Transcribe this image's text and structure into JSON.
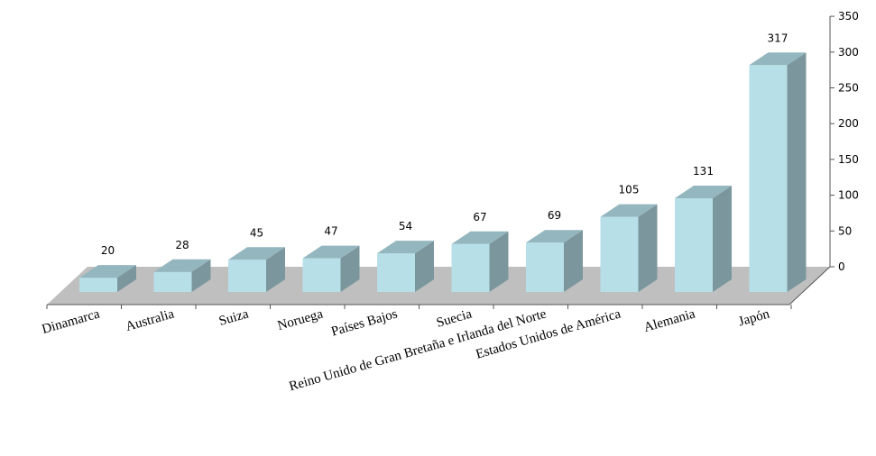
{
  "chart_data": {
    "type": "bar",
    "categories": [
      "Dinamarca",
      "Australia",
      "Suiza",
      "Noruega",
      "Países Bajos",
      "Suecia",
      "Reino Unido de Gran Bretaña e Irlanda del Norte",
      "Estados Unidos de América",
      "Alemania",
      "Japón"
    ],
    "values": [
      20,
      28,
      45,
      47,
      54,
      67,
      69,
      105,
      131,
      317
    ],
    "y_ticks": [
      0,
      50,
      100,
      150,
      200,
      250,
      300,
      350
    ],
    "ylim": [
      0,
      350
    ],
    "title": "",
    "xlabel": "",
    "ylabel": "",
    "grid": false,
    "legend": "none",
    "style": "3d",
    "colors": {
      "bar_front": "#b7dfe8",
      "bar_top": "#94b6be",
      "bar_side": "#7b979d",
      "floor": "#bfbfbf"
    }
  }
}
